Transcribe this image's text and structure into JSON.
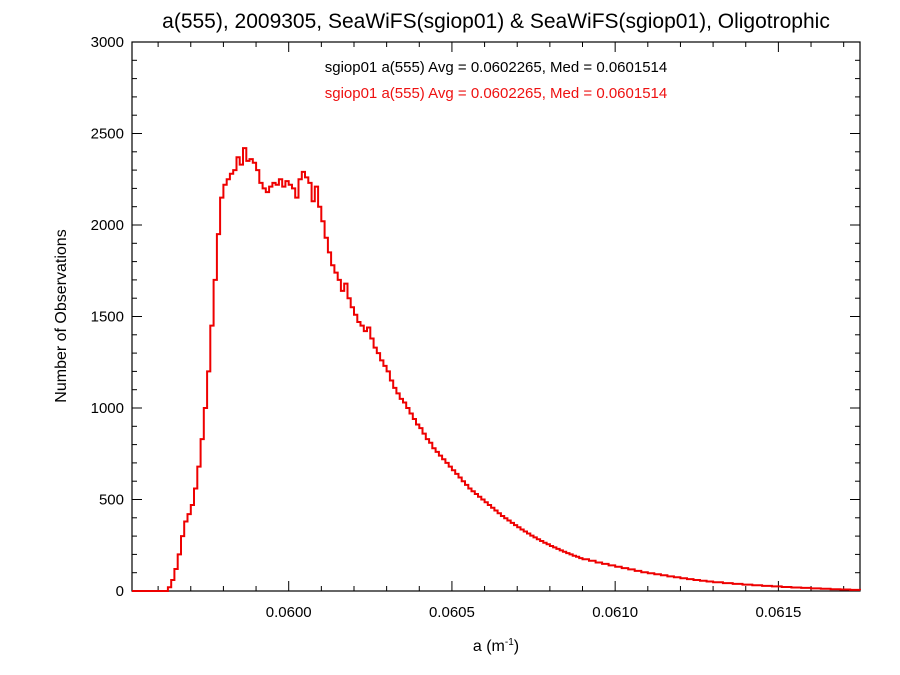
{
  "chart_data": {
    "type": "histogram",
    "title": "a(555), 2009305, SeaWiFS(sgiop01) & SeaWiFS(sgiop01), Oligotrophic",
    "xlabel": {
      "base": "a (m",
      "sup": "-1",
      "end": ")"
    },
    "ylabel": "Number of Observations",
    "xlim": [
      0.05952,
      0.06175
    ],
    "ylim": [
      0,
      3000
    ],
    "x_ticks": [
      0.06,
      0.0605,
      0.061,
      0.0615
    ],
    "x_tick_labels": [
      "0.0600",
      "0.0605",
      "0.0610",
      "0.0615"
    ],
    "y_ticks": [
      0,
      500,
      1000,
      1500,
      2000,
      2500,
      3000
    ],
    "y_tick_labels": [
      "0",
      "500",
      "1000",
      "1500",
      "2000",
      "2500",
      "3000"
    ],
    "annotations": [
      {
        "text": "sgiop01 a(555) Avg = 0.0602265, Med = 0.0601514",
        "color": "#000000"
      },
      {
        "text": "sgiop01 a(555) Avg = 0.0602265, Med = 0.0601514",
        "color": "#ee1111"
      }
    ],
    "series": [
      {
        "color": "#ee0000",
        "step": true,
        "points": [
          [
            0.05952,
            0
          ],
          [
            0.0596,
            0
          ],
          [
            0.05963,
            20
          ],
          [
            0.05964,
            60
          ],
          [
            0.05965,
            120
          ],
          [
            0.05966,
            200
          ],
          [
            0.05967,
            300
          ],
          [
            0.05968,
            380
          ],
          [
            0.05969,
            420
          ],
          [
            0.0597,
            470
          ],
          [
            0.05971,
            560
          ],
          [
            0.05972,
            680
          ],
          [
            0.05973,
            830
          ],
          [
            0.05974,
            1000
          ],
          [
            0.05975,
            1200
          ],
          [
            0.05976,
            1450
          ],
          [
            0.05977,
            1700
          ],
          [
            0.05978,
            1950
          ],
          [
            0.05979,
            2150
          ],
          [
            0.0598,
            2220
          ],
          [
            0.05981,
            2250
          ],
          [
            0.05982,
            2280
          ],
          [
            0.05983,
            2300
          ],
          [
            0.05984,
            2370
          ],
          [
            0.05985,
            2330
          ],
          [
            0.05986,
            2420
          ],
          [
            0.05987,
            2350
          ],
          [
            0.05988,
            2360
          ],
          [
            0.05989,
            2340
          ],
          [
            0.0599,
            2300
          ],
          [
            0.05991,
            2230
          ],
          [
            0.05992,
            2200
          ],
          [
            0.05993,
            2180
          ],
          [
            0.05994,
            2210
          ],
          [
            0.05995,
            2230
          ],
          [
            0.05996,
            2220
          ],
          [
            0.05997,
            2250
          ],
          [
            0.05998,
            2210
          ],
          [
            0.05999,
            2240
          ],
          [
            0.06,
            2220
          ],
          [
            0.06001,
            2200
          ],
          [
            0.06002,
            2150
          ],
          [
            0.06003,
            2250
          ],
          [
            0.06004,
            2290
          ],
          [
            0.06005,
            2260
          ],
          [
            0.06006,
            2230
          ],
          [
            0.06007,
            2130
          ],
          [
            0.06008,
            2210
          ],
          [
            0.06009,
            2100
          ],
          [
            0.0601,
            2020
          ],
          [
            0.06011,
            1930
          ],
          [
            0.06012,
            1850
          ],
          [
            0.06013,
            1780
          ],
          [
            0.06014,
            1740
          ],
          [
            0.06015,
            1700
          ],
          [
            0.06016,
            1640
          ],
          [
            0.06017,
            1680
          ],
          [
            0.06018,
            1600
          ],
          [
            0.06019,
            1550
          ],
          [
            0.0602,
            1510
          ],
          [
            0.06021,
            1470
          ],
          [
            0.06022,
            1450
          ],
          [
            0.06023,
            1420
          ],
          [
            0.06024,
            1440
          ],
          [
            0.06025,
            1380
          ],
          [
            0.06026,
            1330
          ],
          [
            0.06027,
            1300
          ],
          [
            0.06028,
            1260
          ],
          [
            0.06029,
            1230
          ],
          [
            0.0603,
            1200
          ],
          [
            0.06031,
            1150
          ],
          [
            0.06032,
            1110
          ],
          [
            0.06033,
            1080
          ],
          [
            0.06034,
            1050
          ],
          [
            0.06035,
            1030
          ],
          [
            0.06036,
            1000
          ],
          [
            0.06037,
            970
          ],
          [
            0.06038,
            940
          ],
          [
            0.06039,
            910
          ],
          [
            0.0604,
            890
          ],
          [
            0.06041,
            860
          ],
          [
            0.06042,
            830
          ],
          [
            0.06043,
            810
          ],
          [
            0.06044,
            780
          ],
          [
            0.06045,
            760
          ],
          [
            0.06046,
            740
          ],
          [
            0.06047,
            720
          ],
          [
            0.06048,
            700
          ],
          [
            0.06049,
            680
          ],
          [
            0.0605,
            660
          ],
          [
            0.06051,
            640
          ],
          [
            0.06052,
            620
          ],
          [
            0.06053,
            600
          ],
          [
            0.06054,
            580
          ],
          [
            0.06055,
            560
          ],
          [
            0.06056,
            545
          ],
          [
            0.06057,
            530
          ],
          [
            0.06058,
            515
          ],
          [
            0.06059,
            500
          ],
          [
            0.0606,
            485
          ],
          [
            0.06061,
            470
          ],
          [
            0.06062,
            455
          ],
          [
            0.06063,
            440
          ],
          [
            0.06064,
            425
          ],
          [
            0.06065,
            410
          ],
          [
            0.06066,
            398
          ],
          [
            0.06067,
            385
          ],
          [
            0.06068,
            372
          ],
          [
            0.06069,
            360
          ],
          [
            0.0607,
            348
          ],
          [
            0.06071,
            336
          ],
          [
            0.06072,
            325
          ],
          [
            0.06073,
            314
          ],
          [
            0.06074,
            303
          ],
          [
            0.06075,
            293
          ],
          [
            0.06076,
            283
          ],
          [
            0.06077,
            273
          ],
          [
            0.06078,
            264
          ],
          [
            0.06079,
            255
          ],
          [
            0.0608,
            246
          ],
          [
            0.06081,
            238
          ],
          [
            0.06082,
            230
          ],
          [
            0.06083,
            222
          ],
          [
            0.06084,
            215
          ],
          [
            0.06085,
            207
          ],
          [
            0.06086,
            200
          ],
          [
            0.06087,
            193
          ],
          [
            0.06088,
            187
          ],
          [
            0.06089,
            180
          ],
          [
            0.0609,
            174
          ],
          [
            0.06092,
            165
          ],
          [
            0.06094,
            156
          ],
          [
            0.06096,
            148
          ],
          [
            0.06098,
            140
          ],
          [
            0.061,
            132
          ],
          [
            0.06102,
            125
          ],
          [
            0.06104,
            118
          ],
          [
            0.06106,
            110
          ],
          [
            0.06108,
            103
          ],
          [
            0.0611,
            97
          ],
          [
            0.06112,
            91
          ],
          [
            0.06114,
            86
          ],
          [
            0.06116,
            80
          ],
          [
            0.06118,
            75
          ],
          [
            0.0612,
            70
          ],
          [
            0.06122,
            65
          ],
          [
            0.06124,
            60
          ],
          [
            0.06126,
            56
          ],
          [
            0.06128,
            52
          ],
          [
            0.0613,
            48
          ],
          [
            0.06133,
            43
          ],
          [
            0.06136,
            39
          ],
          [
            0.06139,
            35
          ],
          [
            0.06142,
            31
          ],
          [
            0.06145,
            28
          ],
          [
            0.06148,
            25
          ],
          [
            0.06151,
            22
          ],
          [
            0.06154,
            19
          ],
          [
            0.06157,
            17
          ],
          [
            0.0616,
            14
          ],
          [
            0.06163,
            12
          ],
          [
            0.06166,
            10
          ],
          [
            0.06169,
            8
          ],
          [
            0.06172,
            6
          ],
          [
            0.06175,
            5
          ]
        ]
      }
    ]
  }
}
